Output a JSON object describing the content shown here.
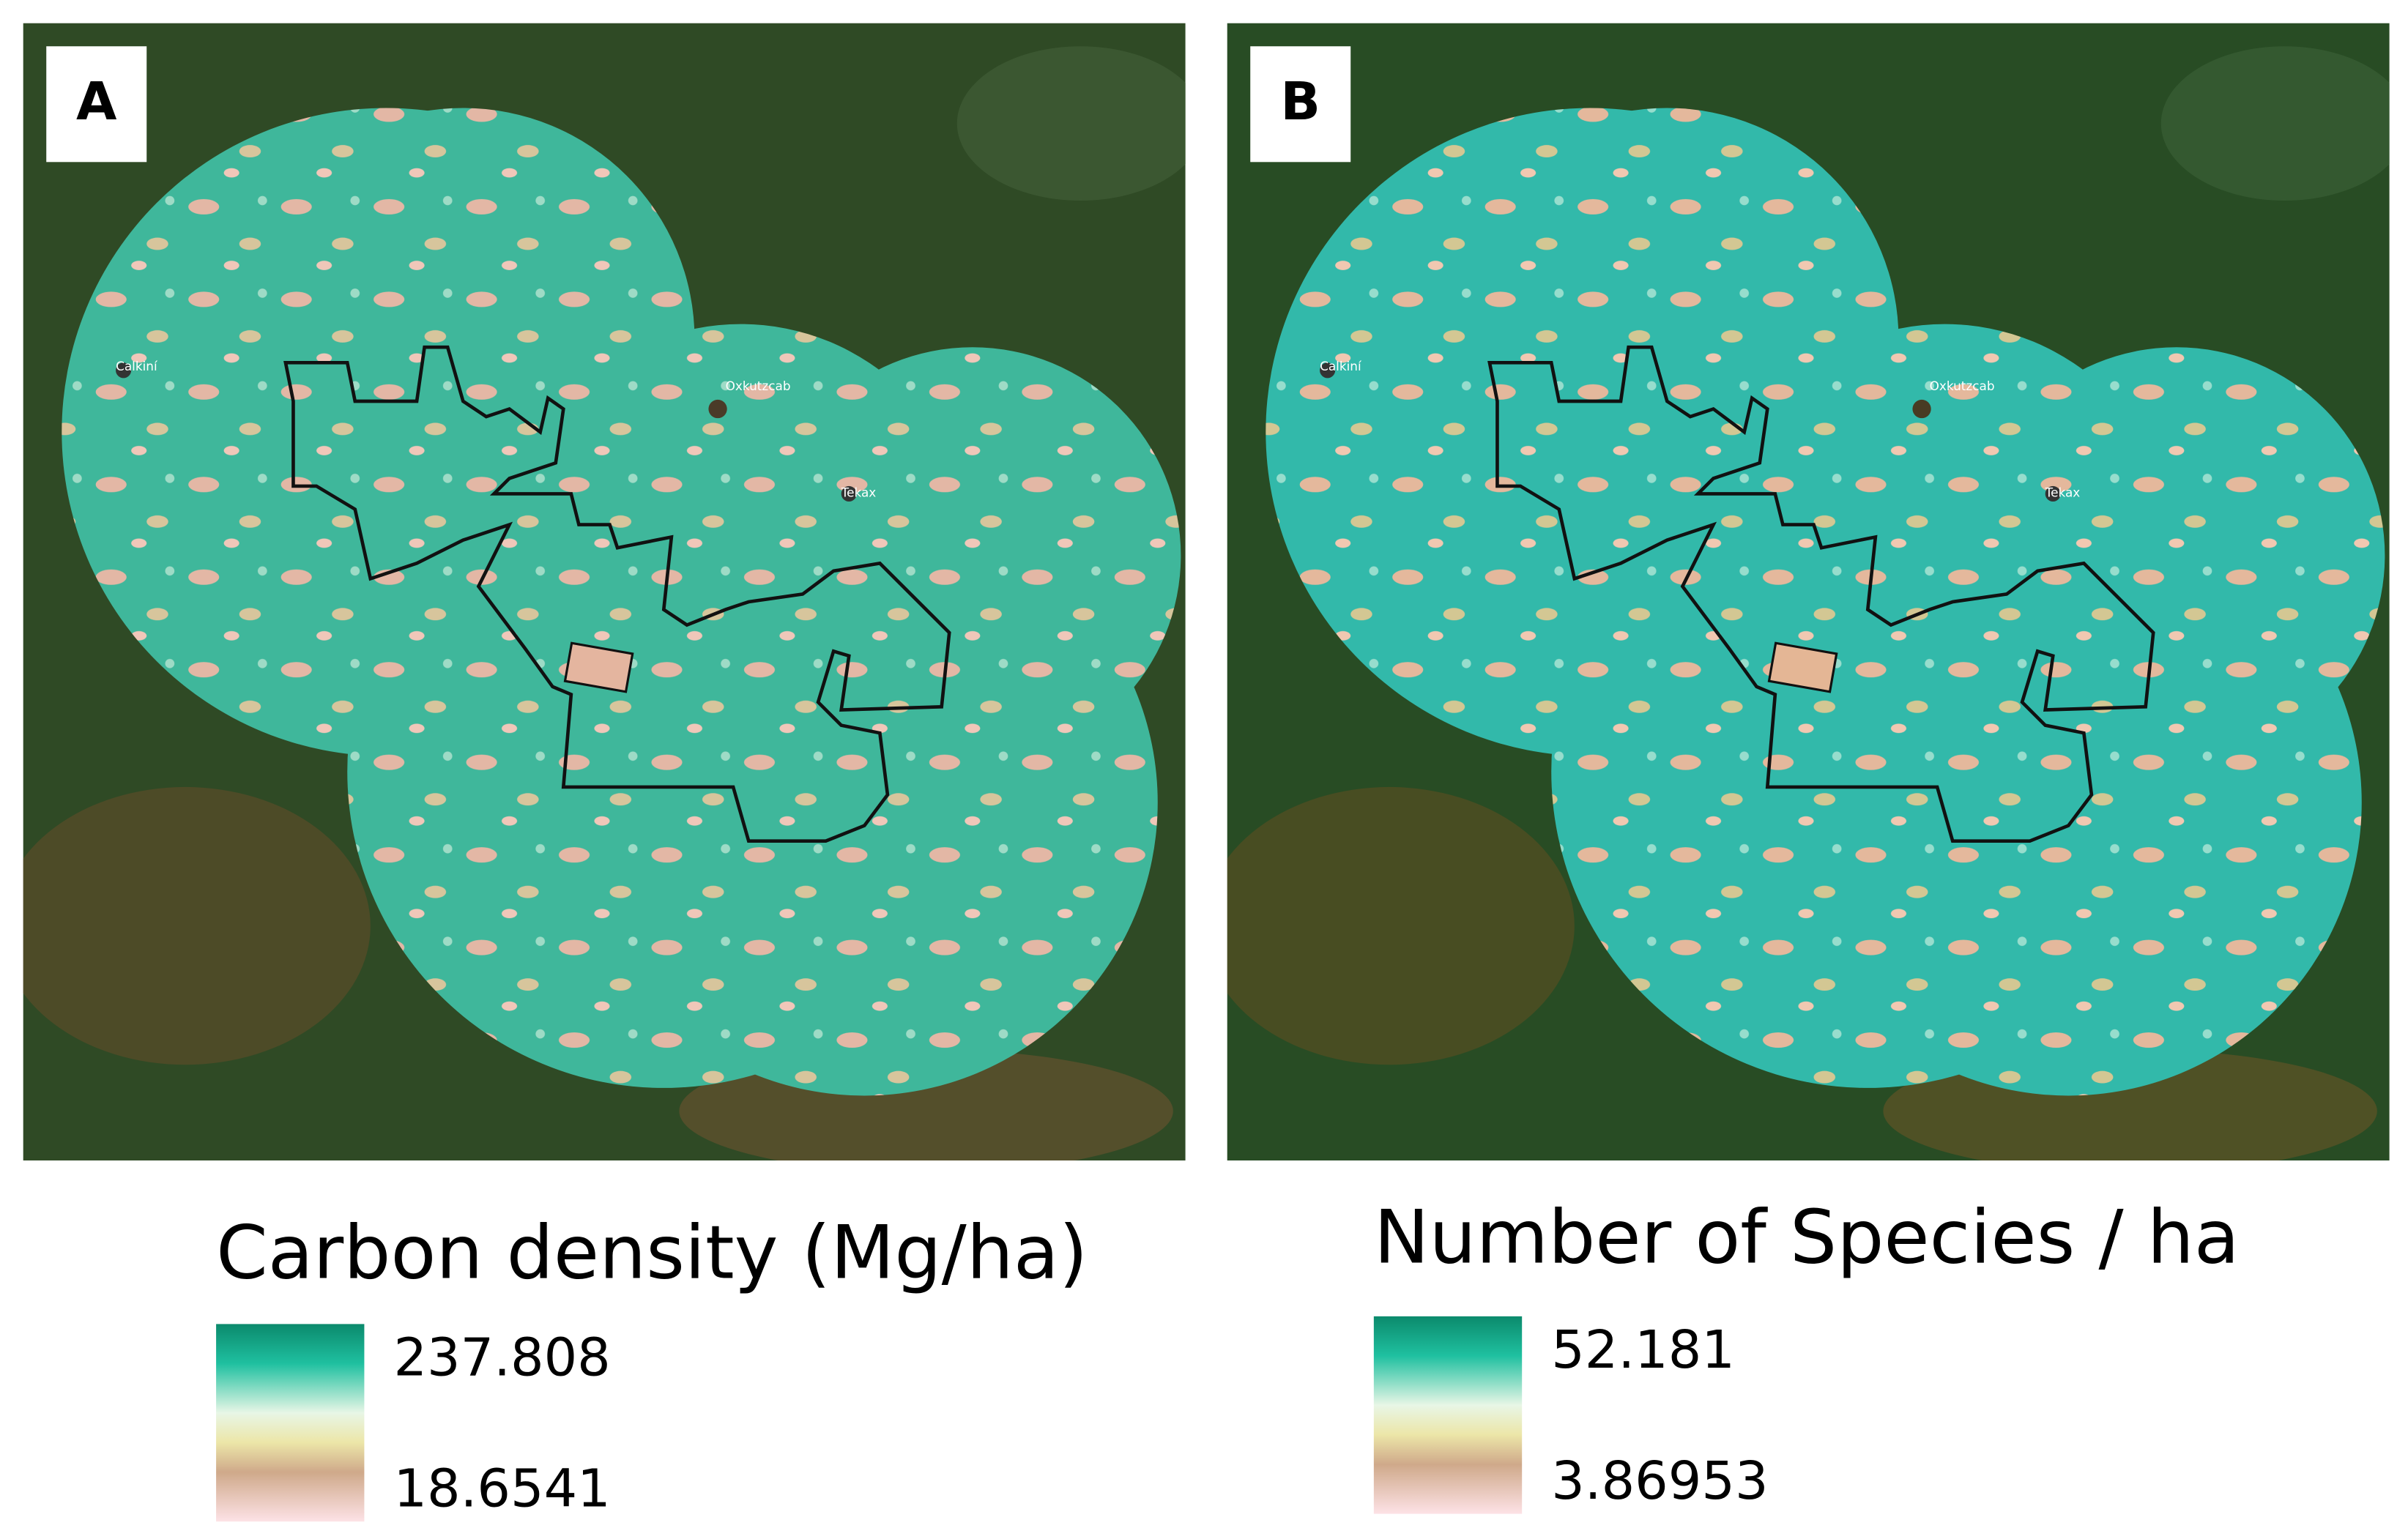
{
  "panels": [
    {
      "label": "A",
      "places": [
        "Calkiní",
        "Oxkutzcab",
        "Tekax"
      ],
      "legend": {
        "title": "Carbon density (Mg/ha)",
        "max": "237.808",
        "min": "18.6541"
      }
    },
    {
      "label": "B",
      "places": [
        "Calkiní",
        "Oxkutzcab",
        "Tekax"
      ],
      "legend": {
        "title": "Number of Species / ha",
        "max": "52.181",
        "min": "3.86953"
      }
    }
  ]
}
